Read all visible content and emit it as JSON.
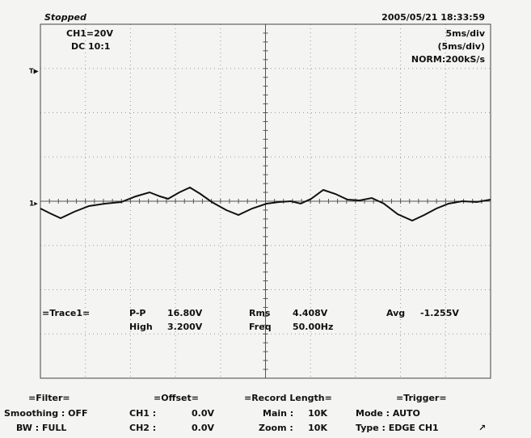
{
  "header": {
    "status": "Stopped",
    "channel": "CH1=20V",
    "coupling": "DC  10:1",
    "datetime": "2005/05/21  18:33:59",
    "timebase": "5ms/div",
    "timebase_window": "(5ms/div)",
    "sampling": "NORM:200kS/s"
  },
  "measurements": {
    "trace": "=Trace1=",
    "pp_label": "P-P",
    "pp_value": "16.80V",
    "high_label": "High",
    "high_value": "3.200V",
    "rms_label": "Rms",
    "rms_value": "4.408V",
    "freq_label": "Freq",
    "freq_value": "50.00Hz",
    "avg_label": "Avg",
    "avg_value": "-1.255V"
  },
  "footer": {
    "filter_title": "=Filter=",
    "smoothing": "Smoothing : OFF",
    "bw": "BW : FULL",
    "offset_title": "=Offset=",
    "ch1_label": "CH1 :",
    "ch1_value": "0.0V",
    "ch2_label": "CH2 :",
    "ch2_value": "0.0V",
    "record_title": "=Record Length=",
    "main_label": "Main :",
    "main_value": "10K",
    "zoom_label": "Zoom :",
    "zoom_value": "10K",
    "trigger_title": "=Trigger=",
    "mode": "Mode : AUTO",
    "type": "Type : EDGE CH1"
  }
}
